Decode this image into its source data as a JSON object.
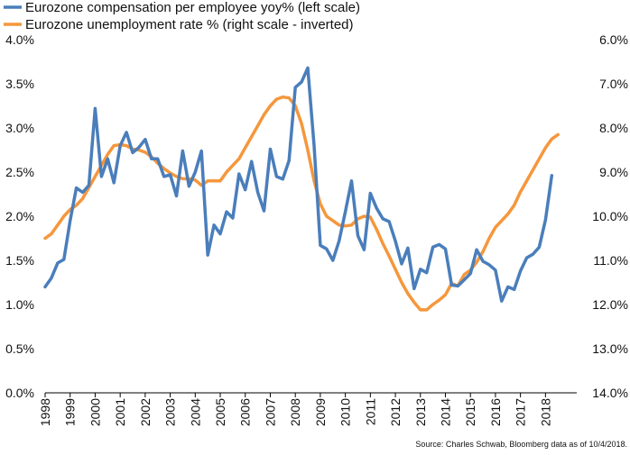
{
  "chart_data": {
    "type": "line",
    "legend_position": "top-left",
    "grid": false,
    "source": "Source: Charles Schwab, Bloomberg data as of 10/4/2018.",
    "x_ticks": [
      "1998",
      "1999",
      "2000",
      "2001",
      "2002",
      "2003",
      "2004",
      "2005",
      "2006",
      "2007",
      "2008",
      "2009",
      "2010",
      "2011",
      "2012",
      "2013",
      "2014",
      "2015",
      "2016",
      "2017",
      "2018"
    ],
    "x_range": [
      1998.0,
      2019.25
    ],
    "left_axis": {
      "ylim": [
        0.0,
        4.0
      ],
      "ticks": [
        "0.0%",
        "0.5%",
        "1.0%",
        "1.5%",
        "2.0%",
        "2.5%",
        "3.0%",
        "3.5%",
        "4.0%"
      ]
    },
    "right_axis": {
      "ylim": [
        14.0,
        6.0
      ],
      "inverted": true,
      "ticks": [
        "6.0%",
        "7.0%",
        "8.0%",
        "9.0%",
        "10.0%",
        "11.0%",
        "12.0%",
        "13.0%",
        "14.0%"
      ]
    },
    "series": [
      {
        "name": "Eurozone compensation per employee yoy% (left scale)",
        "color": "#4a7ebb",
        "axis": "left",
        "x": [
          1998.0,
          1998.25,
          1998.5,
          1998.75,
          1999.0,
          1999.25,
          1999.5,
          1999.75,
          2000.0,
          2000.25,
          2000.5,
          2000.75,
          2001.0,
          2001.25,
          2001.5,
          2001.75,
          2002.0,
          2002.25,
          2002.5,
          2002.75,
          2003.0,
          2003.25,
          2003.5,
          2003.75,
          2004.0,
          2004.25,
          2004.5,
          2004.75,
          2005.0,
          2005.25,
          2005.5,
          2005.75,
          2006.0,
          2006.25,
          2006.5,
          2006.75,
          2007.0,
          2007.25,
          2007.5,
          2007.75,
          2008.0,
          2008.25,
          2008.5,
          2008.75,
          2009.0,
          2009.25,
          2009.5,
          2009.75,
          2010.0,
          2010.25,
          2010.5,
          2010.75,
          2011.0,
          2011.25,
          2011.5,
          2011.75,
          2012.0,
          2012.25,
          2012.5,
          2012.75,
          2013.0,
          2013.25,
          2013.5,
          2013.75,
          2014.0,
          2014.25,
          2014.5,
          2014.75,
          2015.0,
          2015.25,
          2015.5,
          2015.75,
          2016.0,
          2016.25,
          2016.5,
          2016.75,
          2017.0,
          2017.25,
          2017.5,
          2017.75,
          2018.0,
          2018.25
        ],
        "values": [
          1.2,
          1.3,
          1.47,
          1.51,
          1.95,
          2.32,
          2.27,
          2.35,
          3.22,
          2.45,
          2.65,
          2.38,
          2.8,
          2.95,
          2.72,
          2.78,
          2.87,
          2.65,
          2.65,
          2.45,
          2.47,
          2.23,
          2.74,
          2.34,
          2.5,
          2.74,
          1.56,
          1.9,
          1.8,
          2.05,
          1.98,
          2.48,
          2.3,
          2.62,
          2.27,
          2.06,
          2.76,
          2.45,
          2.42,
          2.63,
          3.46,
          3.52,
          3.68,
          2.8,
          1.67,
          1.63,
          1.5,
          1.72,
          2.05,
          2.4,
          1.78,
          1.62,
          2.26,
          2.09,
          1.97,
          1.94,
          1.72,
          1.46,
          1.64,
          1.18,
          1.4,
          1.36,
          1.65,
          1.68,
          1.63,
          1.22,
          1.21,
          1.28,
          1.35,
          1.62,
          1.49,
          1.45,
          1.39,
          1.04,
          1.2,
          1.17,
          1.38,
          1.53,
          1.57,
          1.65,
          1.96,
          2.46
        ]
      },
      {
        "name": "Eurozone unemployment rate % (right scale - inverted)",
        "color": "#f5973c",
        "axis": "right",
        "x": [
          1998.0,
          1998.25,
          1998.5,
          1998.75,
          1999.0,
          1999.25,
          1999.5,
          1999.75,
          2000.0,
          2000.25,
          2000.5,
          2000.75,
          2001.0,
          2001.25,
          2001.5,
          2001.75,
          2002.0,
          2002.25,
          2002.5,
          2002.75,
          2003.0,
          2003.25,
          2003.5,
          2003.75,
          2004.0,
          2004.25,
          2004.5,
          2004.75,
          2005.0,
          2005.25,
          2005.5,
          2005.75,
          2006.0,
          2006.25,
          2006.5,
          2006.75,
          2007.0,
          2007.25,
          2007.5,
          2007.75,
          2008.0,
          2008.25,
          2008.5,
          2008.75,
          2009.0,
          2009.25,
          2009.5,
          2009.75,
          2010.0,
          2010.25,
          2010.5,
          2010.75,
          2011.0,
          2011.25,
          2011.5,
          2011.75,
          2012.0,
          2012.25,
          2012.5,
          2012.75,
          2013.0,
          2013.25,
          2013.5,
          2013.75,
          2014.0,
          2014.25,
          2014.5,
          2014.75,
          2015.0,
          2015.25,
          2015.5,
          2015.75,
          2016.0,
          2016.25,
          2016.5,
          2016.75,
          2017.0,
          2017.25,
          2017.5,
          2017.75,
          2018.0,
          2018.25,
          2018.5
        ],
        "values": [
          10.5,
          10.4,
          10.2,
          10.0,
          9.85,
          9.75,
          9.6,
          9.35,
          9.1,
          8.85,
          8.6,
          8.4,
          8.38,
          8.4,
          8.48,
          8.5,
          8.55,
          8.65,
          8.8,
          8.92,
          9.02,
          9.1,
          9.15,
          9.15,
          9.18,
          9.3,
          9.2,
          9.2,
          9.2,
          9.0,
          8.85,
          8.7,
          8.45,
          8.2,
          7.95,
          7.7,
          7.5,
          7.35,
          7.3,
          7.32,
          7.5,
          7.9,
          8.5,
          9.2,
          9.72,
          10.0,
          10.1,
          10.2,
          10.22,
          10.2,
          10.06,
          10.0,
          10.02,
          10.3,
          10.62,
          10.9,
          11.2,
          11.5,
          11.75,
          11.95,
          12.12,
          12.12,
          12.0,
          11.9,
          11.78,
          11.52,
          11.58,
          11.32,
          11.22,
          11.04,
          10.8,
          10.5,
          10.25,
          10.1,
          9.95,
          9.75,
          9.45,
          9.2,
          8.95,
          8.7,
          8.45,
          8.25,
          8.15
        ]
      }
    ]
  }
}
